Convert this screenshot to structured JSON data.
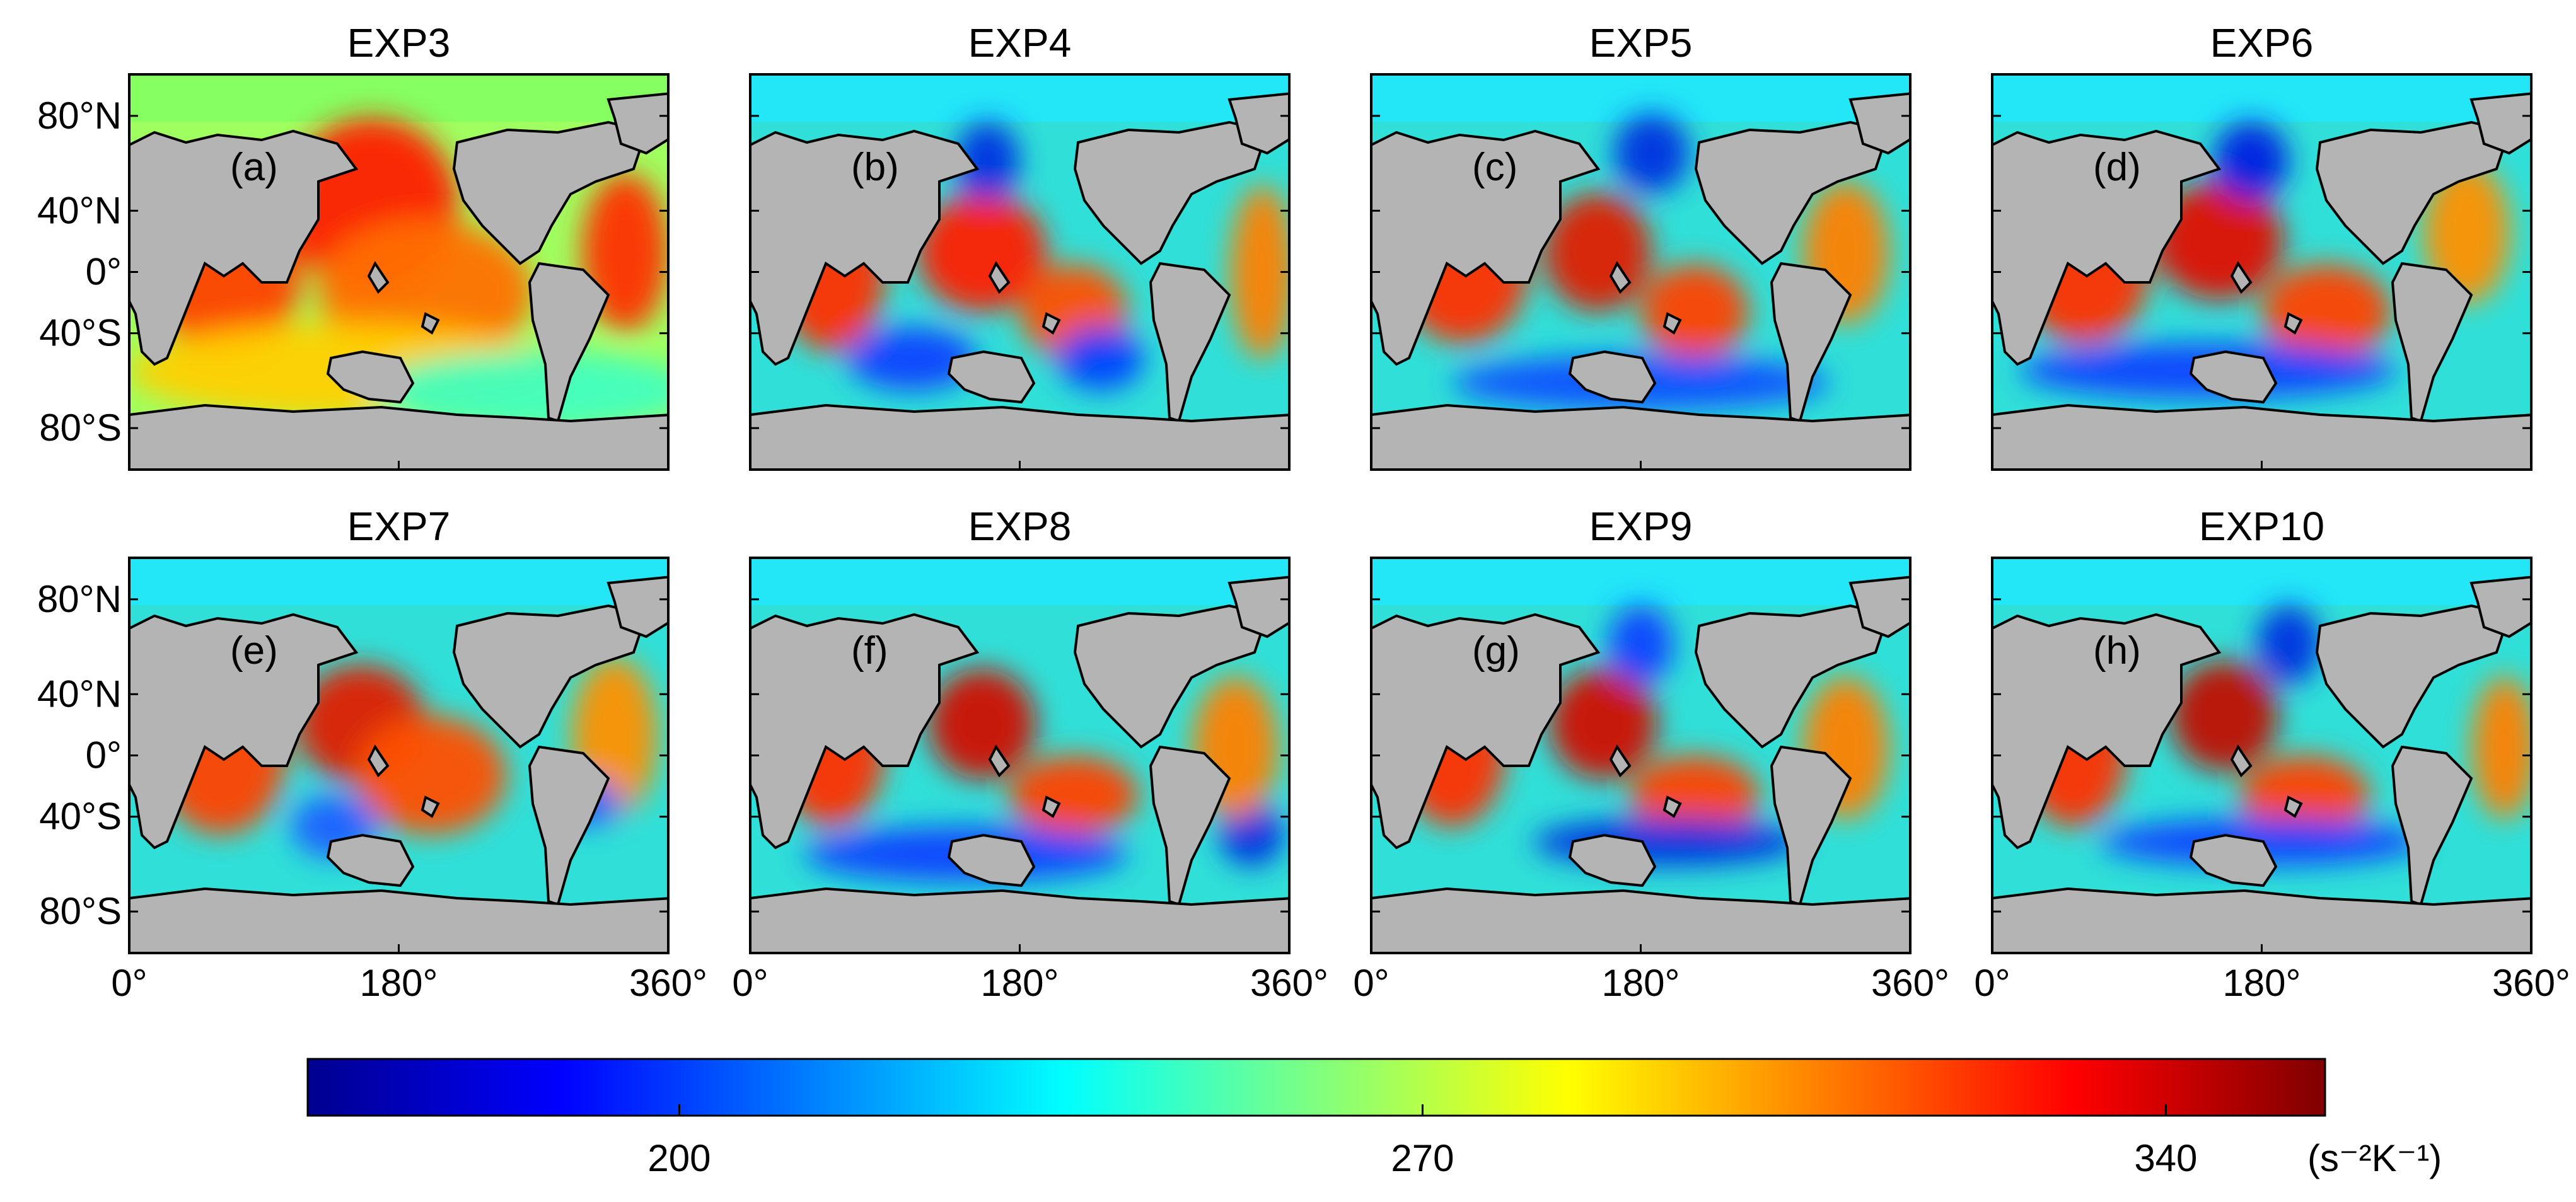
{
  "figure": {
    "panels": [
      {
        "title": "EXP3",
        "label": "(a)",
        "variant": 0
      },
      {
        "title": "EXP4",
        "label": "(b)",
        "variant": 1
      },
      {
        "title": "EXP5",
        "label": "(c)",
        "variant": 2
      },
      {
        "title": "EXP6",
        "label": "(d)",
        "variant": 3
      },
      {
        "title": "EXP7",
        "label": "(e)",
        "variant": 4
      },
      {
        "title": "EXP8",
        "label": "(f)",
        "variant": 5
      },
      {
        "title": "EXP9",
        "label": "(g)",
        "variant": 6
      },
      {
        "title": "EXP10",
        "label": "(h)",
        "variant": 7
      }
    ],
    "latitude_ticks": [
      "80°N",
      "40°N",
      "0°",
      "40°S",
      "80°S"
    ],
    "longitude_ticks": [
      "0°",
      "180°",
      "360°"
    ],
    "colorbar": {
      "ticks": [
        "200",
        "270",
        "340"
      ],
      "tick_values": [
        200,
        270,
        340
      ],
      "range": [
        165,
        355
      ],
      "unit": "(s⁻²K⁻¹)",
      "colormap": "jet"
    },
    "colors": {
      "land": "#b4b4b4",
      "coast": "#000000"
    }
  }
}
